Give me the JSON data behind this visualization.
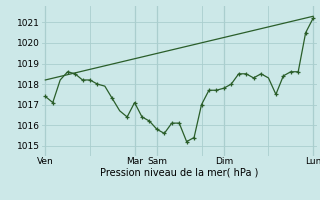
{
  "background_color": "#cce8e8",
  "grid_color": "#aacece",
  "line_color": "#2a5e2a",
  "xlabel": "Pression niveau de la mer( hPa )",
  "ylim": [
    1014.5,
    1021.8
  ],
  "yticks": [
    1015,
    1016,
    1017,
    1018,
    1019,
    1020,
    1021
  ],
  "xtick_labels": [
    "Ven",
    "",
    "Mar",
    "Sam",
    "",
    "Dim",
    "",
    "Lun"
  ],
  "xtick_positions": [
    0,
    12,
    24,
    30,
    42,
    48,
    60,
    72
  ],
  "vlines": [
    0,
    24,
    30,
    48,
    72
  ],
  "data_x": [
    0,
    2,
    4,
    6,
    8,
    10,
    12,
    14,
    16,
    18,
    20,
    22,
    24,
    26,
    28,
    30,
    32,
    34,
    36,
    38,
    40,
    42,
    44,
    46,
    48,
    50,
    52,
    54,
    56,
    58,
    60,
    62,
    64,
    66,
    68,
    70,
    72
  ],
  "data_y": [
    1017.4,
    1017.1,
    1018.2,
    1018.6,
    1018.5,
    1018.2,
    1018.2,
    1018.0,
    1017.9,
    1017.3,
    1016.7,
    1016.4,
    1017.1,
    1016.4,
    1016.2,
    1015.8,
    1015.6,
    1016.1,
    1016.1,
    1015.2,
    1015.4,
    1017.0,
    1017.7,
    1017.7,
    1017.8,
    1018.0,
    1018.5,
    1018.5,
    1018.3,
    1018.5,
    1018.3,
    1017.5,
    1018.4,
    1018.6,
    1018.6,
    1020.5,
    1021.2
  ],
  "trend_x": [
    0,
    72
  ],
  "trend_y": [
    1018.2,
    1021.3
  ],
  "marker_x": [
    0,
    2,
    6,
    8,
    10,
    12,
    14,
    18,
    22,
    24,
    26,
    28,
    30,
    32,
    34,
    36,
    38,
    40,
    42,
    44,
    46,
    48,
    50,
    52,
    54,
    56,
    58,
    62,
    64,
    66,
    68,
    70,
    72
  ],
  "marker_y": [
    1017.4,
    1017.1,
    1018.6,
    1018.5,
    1018.2,
    1018.2,
    1018.0,
    1017.3,
    1016.4,
    1017.1,
    1016.4,
    1016.2,
    1015.8,
    1015.6,
    1016.1,
    1016.1,
    1015.2,
    1015.4,
    1017.0,
    1017.7,
    1017.7,
    1017.8,
    1018.0,
    1018.5,
    1018.5,
    1018.3,
    1018.5,
    1017.5,
    1018.4,
    1018.6,
    1018.6,
    1020.5,
    1021.2
  ],
  "xlabel_fontsize": 7,
  "tick_fontsize": 6.5
}
